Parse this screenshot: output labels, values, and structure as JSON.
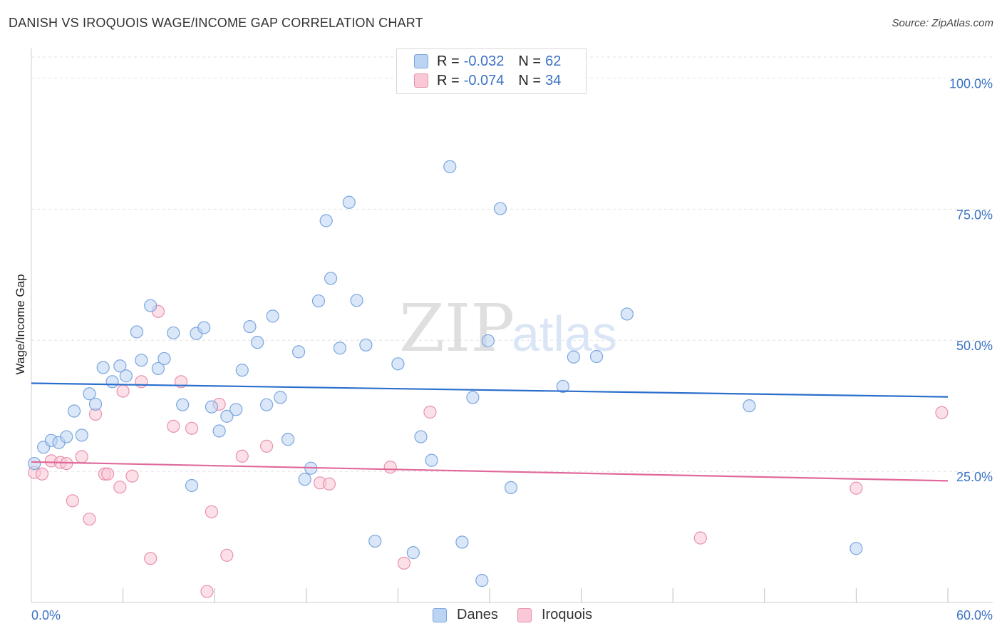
{
  "header": {
    "title": "DANISH VS IROQUOIS WAGE/INCOME GAP CORRELATION CHART",
    "source": "Source: ZipAtlas.com"
  },
  "watermark": {
    "zip": "ZIP",
    "atlas": "atlas"
  },
  "legend": {
    "rows": [
      {
        "r_label": "R = ",
        "r_value": "-0.032",
        "n_label": "N = ",
        "n_value": "62"
      },
      {
        "r_label": "R = ",
        "r_value": "-0.074",
        "n_label": "N = ",
        "n_value": "34"
      }
    ]
  },
  "colors": {
    "danes_fill": "#bcd4f4",
    "danes_stroke": "#7aa6de",
    "danes_line": "#2b6fcc",
    "iroquois_fill": "#f9c7d6",
    "iroquois_stroke": "#e891ad",
    "iroquois_line": "#e0699a",
    "tick_label": "#3b72c4"
  },
  "chart_data": {
    "type": "scatter",
    "xlabel": "",
    "ylabel": "Wage/Income Gap",
    "xlim": [
      0,
      60
    ],
    "ylim": [
      0,
      104
    ],
    "x_tick_labels": [
      "0.0%",
      "60.0%"
    ],
    "y_ticks": [
      25,
      50,
      75,
      100
    ],
    "y_tick_labels": [
      "25.0%",
      "50.0%",
      "75.0%",
      "100.0%"
    ],
    "grid": true,
    "legend_position": "top-center",
    "series": [
      {
        "name": "Danes",
        "trend": [
          [
            0,
            41.8
          ],
          [
            60,
            39.2
          ]
        ],
        "points": [
          [
            0.2,
            26.5
          ],
          [
            0.8,
            29.6
          ],
          [
            1.3,
            30.9
          ],
          [
            1.8,
            30.5
          ],
          [
            2.3,
            31.6
          ],
          [
            2.8,
            36.5
          ],
          [
            3.3,
            31.9
          ],
          [
            3.8,
            39.8
          ],
          [
            4.2,
            37.8
          ],
          [
            4.7,
            44.8
          ],
          [
            5.3,
            42.1
          ],
          [
            5.8,
            45.1
          ],
          [
            6.2,
            43.2
          ],
          [
            6.9,
            51.6
          ],
          [
            7.2,
            46.2
          ],
          [
            7.8,
            56.6
          ],
          [
            8.3,
            44.6
          ],
          [
            8.7,
            46.5
          ],
          [
            9.3,
            51.4
          ],
          [
            9.9,
            37.7
          ],
          [
            10.5,
            22.3
          ],
          [
            10.8,
            51.3
          ],
          [
            11.3,
            52.4
          ],
          [
            11.8,
            37.3
          ],
          [
            12.3,
            32.7
          ],
          [
            12.8,
            35.5
          ],
          [
            13.4,
            36.8
          ],
          [
            13.8,
            44.3
          ],
          [
            14.3,
            52.6
          ],
          [
            14.8,
            49.6
          ],
          [
            15.4,
            37.7
          ],
          [
            15.8,
            54.6
          ],
          [
            16.3,
            39.1
          ],
          [
            16.8,
            31.1
          ],
          [
            17.5,
            47.8
          ],
          [
            17.9,
            23.5
          ],
          [
            18.3,
            25.6
          ],
          [
            18.8,
            57.5
          ],
          [
            19.3,
            72.8
          ],
          [
            19.6,
            61.8
          ],
          [
            20.2,
            48.5
          ],
          [
            20.8,
            76.3
          ],
          [
            21.3,
            57.6
          ],
          [
            21.9,
            49.1
          ],
          [
            22.5,
            11.7
          ],
          [
            24.0,
            45.5
          ],
          [
            25.0,
            9.5
          ],
          [
            25.5,
            31.6
          ],
          [
            26.2,
            27.1
          ],
          [
            27.4,
            83.1
          ],
          [
            28.2,
            11.5
          ],
          [
            28.9,
            39.1
          ],
          [
            29.5,
            4.2
          ],
          [
            29.9,
            49.9
          ],
          [
            30.7,
            75.1
          ],
          [
            31.4,
            21.9
          ],
          [
            34.8,
            41.2
          ],
          [
            35.5,
            46.8
          ],
          [
            37.0,
            46.9
          ],
          [
            39.0,
            55.0
          ],
          [
            47.0,
            37.5
          ],
          [
            54.0,
            10.3
          ]
        ]
      },
      {
        "name": "Iroquois",
        "trend": [
          [
            0,
            26.8
          ],
          [
            60,
            23.2
          ]
        ],
        "points": [
          [
            0.2,
            24.8
          ],
          [
            0.7,
            24.5
          ],
          [
            1.3,
            27.0
          ],
          [
            1.9,
            26.7
          ],
          [
            2.3,
            26.5
          ],
          [
            2.7,
            19.4
          ],
          [
            3.3,
            27.8
          ],
          [
            3.8,
            15.9
          ],
          [
            4.2,
            35.9
          ],
          [
            4.8,
            24.5
          ],
          [
            5.0,
            24.5
          ],
          [
            5.8,
            22.0
          ],
          [
            6.0,
            40.3
          ],
          [
            6.6,
            24.1
          ],
          [
            7.2,
            42.1
          ],
          [
            7.8,
            8.4
          ],
          [
            8.3,
            55.5
          ],
          [
            9.3,
            33.6
          ],
          [
            9.8,
            42.1
          ],
          [
            10.5,
            33.2
          ],
          [
            11.5,
            2.1
          ],
          [
            11.8,
            17.3
          ],
          [
            12.3,
            37.8
          ],
          [
            12.8,
            9.0
          ],
          [
            13.8,
            27.9
          ],
          [
            15.4,
            29.8
          ],
          [
            18.9,
            22.8
          ],
          [
            19.5,
            22.6
          ],
          [
            23.5,
            25.8
          ],
          [
            24.4,
            7.5
          ],
          [
            26.1,
            36.3
          ],
          [
            43.8,
            12.3
          ],
          [
            54.0,
            21.8
          ],
          [
            59.6,
            36.2
          ]
        ]
      }
    ]
  }
}
